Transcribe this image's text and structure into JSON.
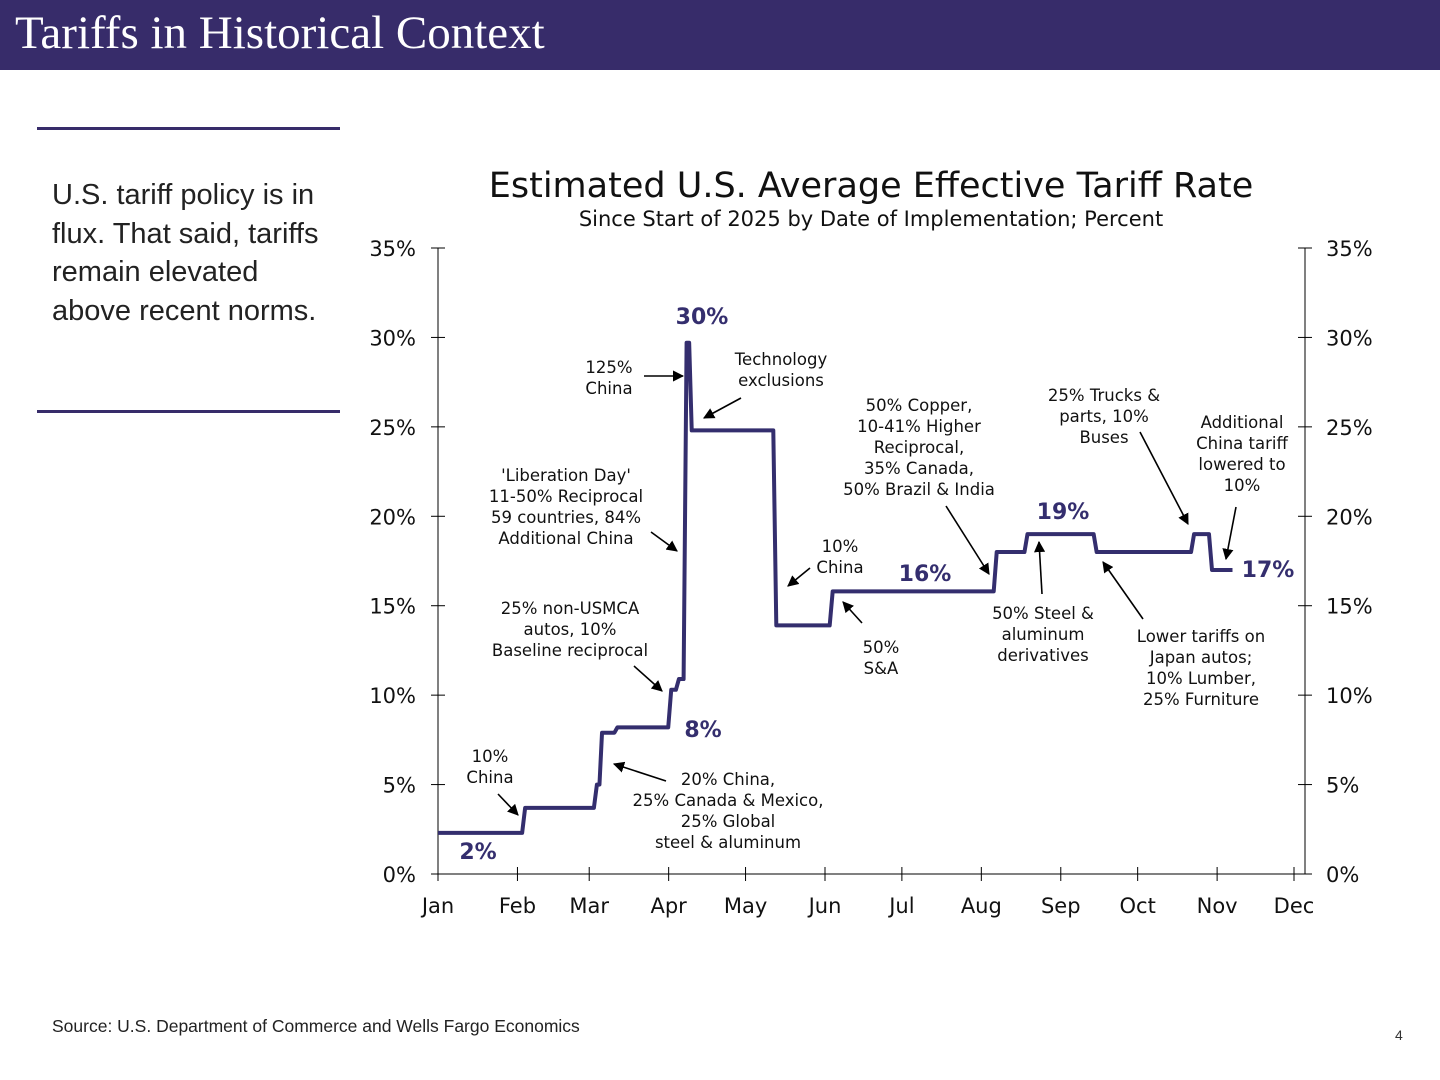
{
  "header": {
    "title": "Tariffs in Historical Context"
  },
  "sidebar": {
    "text": "U.S. tariff policy is in flux. That said, tariffs remain elevated above recent norms."
  },
  "footer": {
    "source": "Source: U.S. Department of Commerce and Wells Fargo Economics",
    "page_number": "4"
  },
  "colors": {
    "brand": "#372c6a",
    "line": "#342e6e"
  },
  "chart_data": {
    "type": "line",
    "title": "Estimated U.S. Average Effective Tariff Rate",
    "subtitle": "Since Start of 2025 by Date of Implementation; Percent",
    "xlabel": "",
    "ylabel": "",
    "ylim": [
      0,
      35
    ],
    "y_ticks": [
      "0%",
      "5%",
      "10%",
      "15%",
      "20%",
      "25%",
      "30%",
      "35%"
    ],
    "x_ticks": [
      "Jan",
      "Feb",
      "Mar",
      "Apr",
      "May",
      "Jun",
      "Jul",
      "Aug",
      "Sep",
      "Oct",
      "Nov",
      "Dec"
    ],
    "xlim": [
      "2025-01-01",
      "2025-12-01"
    ],
    "grid": false,
    "legend": "none",
    "series": [
      {
        "step": true,
        "points": [
          [
            "2025-01-01",
            2.3
          ],
          [
            "2025-02-04",
            3.7
          ],
          [
            "2025-03-04",
            5.0
          ],
          [
            "2025-03-06",
            7.9
          ],
          [
            "2025-03-12",
            8.2
          ],
          [
            "2025-04-02",
            10.3
          ],
          [
            "2025-04-05",
            10.9
          ],
          [
            "2025-04-08",
            29.7
          ],
          [
            "2025-04-10",
            24.8
          ],
          [
            "2025-05-13",
            13.9
          ],
          [
            "2025-06-04",
            15.8
          ],
          [
            "2025-08-07",
            18.0
          ],
          [
            "2025-08-19",
            19.0
          ],
          [
            "2025-09-15",
            18.0
          ],
          [
            "2025-10-23",
            19.0
          ],
          [
            "2025-10-30",
            17.0
          ],
          [
            "2025-11-07",
            17.0
          ]
        ]
      }
    ],
    "value_labels": [
      "2%",
      "8%",
      "30%",
      "16%",
      "19%",
      "17%"
    ],
    "annotations": [
      {
        "lines": [
          "125%",
          "China"
        ]
      },
      {
        "lines": [
          "Technology",
          "exclusions"
        ]
      },
      {
        "lines": [
          "'Liberation Day'",
          "11-50% Reciprocal",
          "59 countries, 84%",
          "Additional China"
        ]
      },
      {
        "lines": [
          "25% non-USMCA",
          "autos, 10%",
          "Baseline reciprocal"
        ]
      },
      {
        "lines": [
          "10%",
          "China"
        ]
      },
      {
        "lines": [
          "20% China,",
          "25% Canada & Mexico,",
          "25% Global",
          "steel & aluminum"
        ]
      },
      {
        "lines": [
          "10%",
          "China"
        ]
      },
      {
        "lines": [
          "50%",
          "S&A"
        ]
      },
      {
        "lines": [
          "50% Copper,",
          "10-41% Higher",
          "Reciprocal,",
          "35% Canada,",
          "50% Brazil & India"
        ]
      },
      {
        "lines": [
          "25% Trucks &",
          "parts, 10%",
          "Buses"
        ]
      },
      {
        "lines": [
          "Additional",
          "China tariff",
          "lowered to",
          "10%"
        ]
      },
      {
        "lines": [
          "50% Steel &",
          "aluminum",
          "derivatives"
        ]
      },
      {
        "lines": [
          "Lower tariffs on",
          "Japan autos;",
          "10% Lumber,",
          "25% Furniture"
        ]
      }
    ]
  }
}
